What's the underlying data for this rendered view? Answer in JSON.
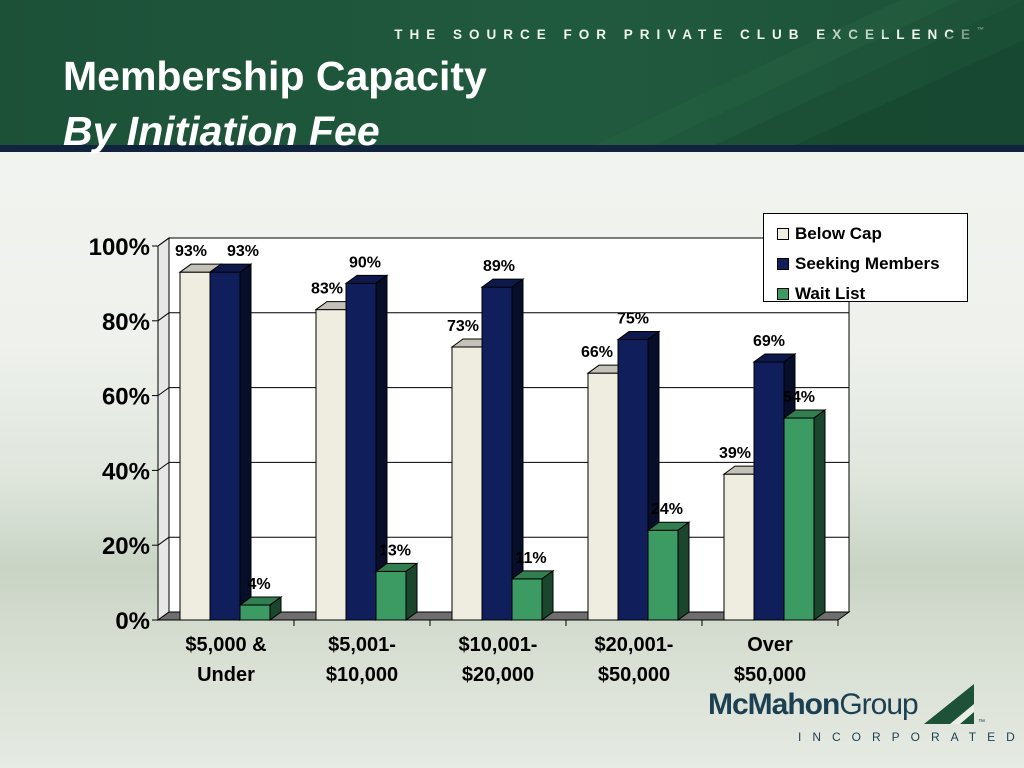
{
  "header": {
    "tagline": "THE SOURCE FOR PRIVATE CLUB EXCELLENCE",
    "tagline_tm": "™",
    "title": "Membership Capacity",
    "subtitle": "By Initiation Fee"
  },
  "colors": {
    "header_green": "#205a3e",
    "below_cap": "#efece0",
    "seeking_members": "#101f5c",
    "wait_list": "#3c9a63"
  },
  "chart_data": {
    "type": "bar",
    "title": "",
    "xlabel": "",
    "ylabel": "",
    "ylim": [
      0,
      100
    ],
    "y_ticks": [
      "0%",
      "20%",
      "40%",
      "60%",
      "80%",
      "100%"
    ],
    "grid": true,
    "legend_position": "top-right",
    "categories": [
      [
        "$5,000 &",
        "Under"
      ],
      [
        "$5,001-",
        "$10,000"
      ],
      [
        "$10,001-",
        "$20,000"
      ],
      [
        "$20,001-",
        "$50,000"
      ],
      [
        "Over",
        "$50,000"
      ]
    ],
    "series": [
      {
        "name": "Below Cap",
        "color": "#efece0",
        "values": [
          93,
          83,
          73,
          66,
          39
        ],
        "labels": [
          "93%",
          "83%",
          "73%",
          "66%",
          "39%"
        ]
      },
      {
        "name": "Seeking Members",
        "color": "#101f5c",
        "values": [
          93,
          90,
          89,
          75,
          69
        ],
        "labels": [
          "93%",
          "90%",
          "89%",
          "75%",
          "69%"
        ]
      },
      {
        "name": "Wait List",
        "color": "#3c9a63",
        "values": [
          4,
          13,
          11,
          24,
          54
        ],
        "labels": [
          "4%",
          "13%",
          "11%",
          "24%",
          "54%"
        ]
      }
    ]
  },
  "logo": {
    "name_bold": "McMahon",
    "name_regular": "Group",
    "tm": "™",
    "sub": "INCORPORATED"
  }
}
